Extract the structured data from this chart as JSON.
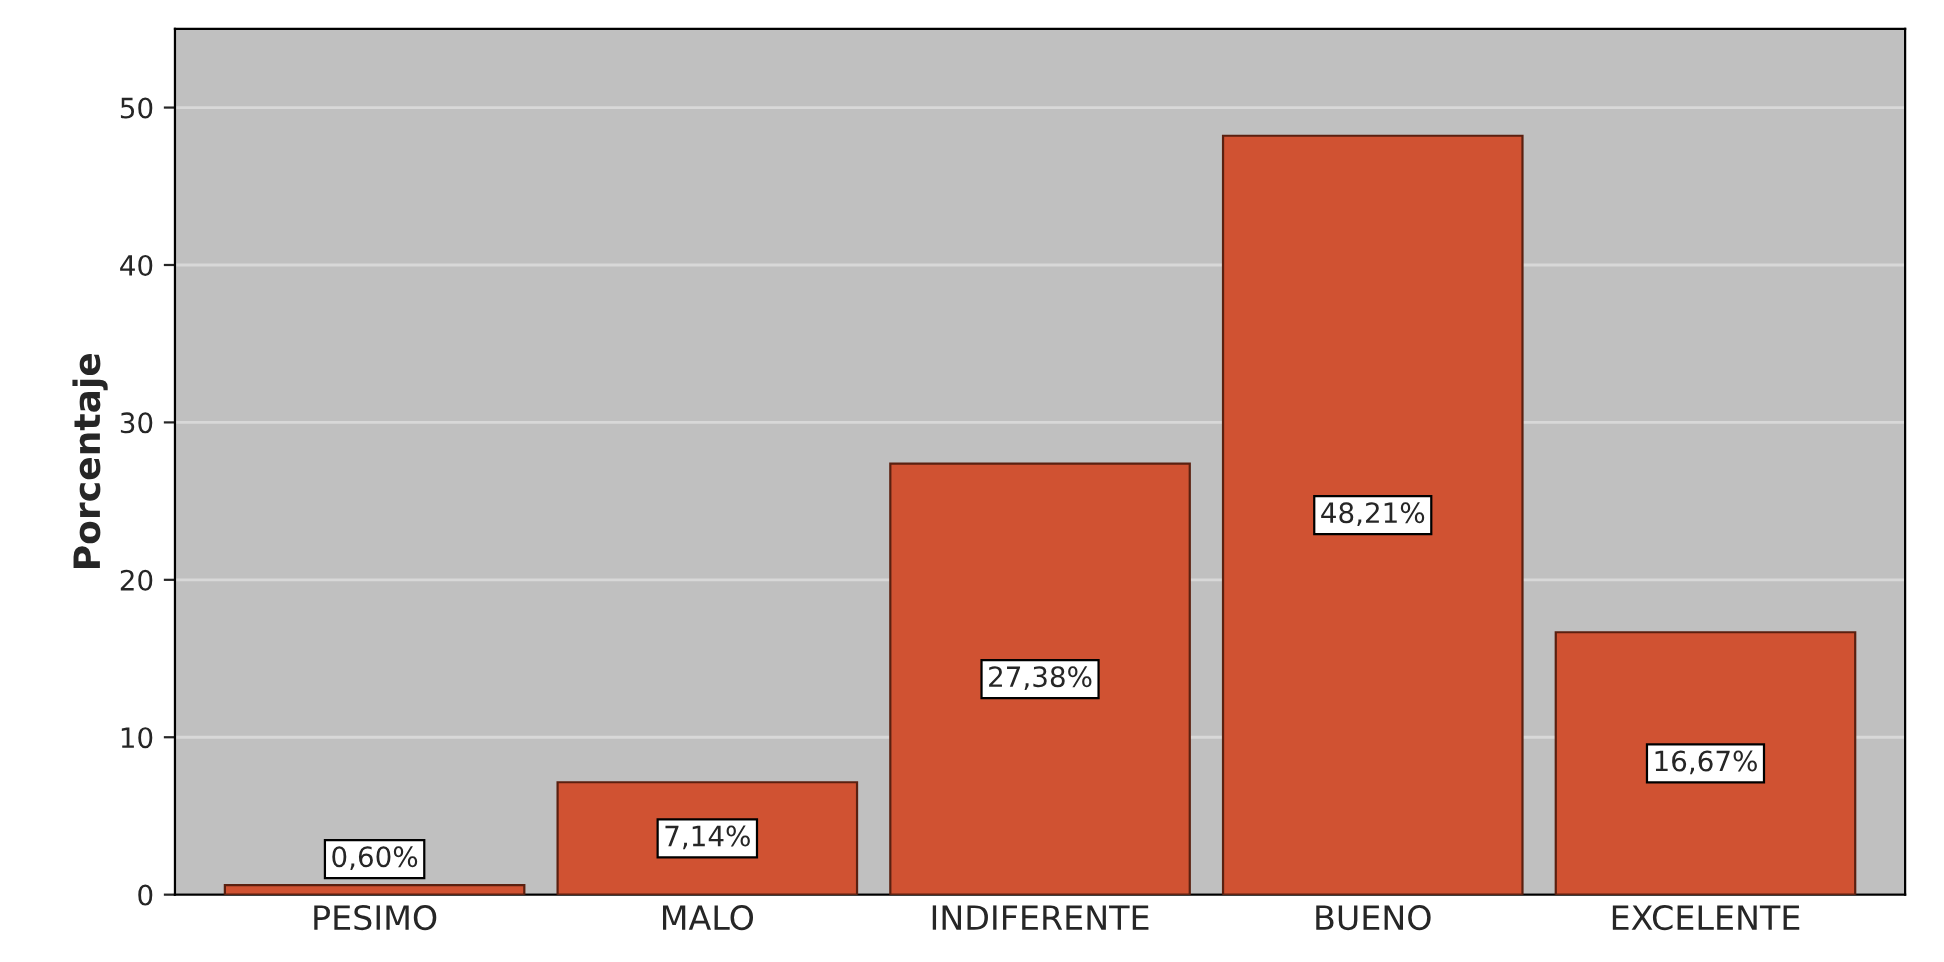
{
  "chart_data": {
    "type": "bar",
    "ylabel": "Porcentaje",
    "categories": [
      "PESIMO",
      "MALO",
      "INDIFERENTE",
      "BUENO",
      "EXCELENTE"
    ],
    "values": [
      0.6,
      7.14,
      27.38,
      48.21,
      16.67
    ],
    "value_labels": [
      "0,60%",
      "7,14%",
      "27,38%",
      "48,21%",
      "16,67%"
    ],
    "color": "#d05232",
    "ylim": [
      0,
      55
    ],
    "yticks": [
      0,
      10,
      20,
      30,
      40,
      50
    ],
    "grid": "y"
  }
}
